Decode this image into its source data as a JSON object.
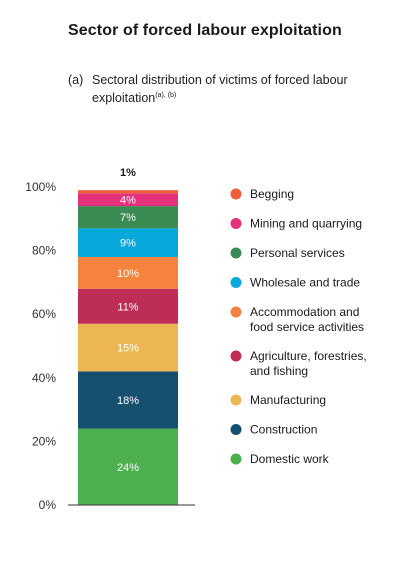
{
  "title": "Sector of forced labour exploitation",
  "subtitle": {
    "number": "(a)",
    "line1": "Sectoral distribution of victims of forced labour",
    "line2": "exploitation",
    "note": "(a), (b)"
  },
  "chart_data": {
    "type": "bar",
    "stacked": true,
    "ylim": [
      0,
      100
    ],
    "yticks": [
      "0%",
      "20%",
      "40%",
      "60%",
      "80%",
      "100%"
    ],
    "series": [
      {
        "name": "Domestic work",
        "value": 24,
        "label": "24%",
        "color": "#4caf50"
      },
      {
        "name": "Construction",
        "value": 18,
        "label": "18%",
        "color": "#16506f"
      },
      {
        "name": "Manufacturing",
        "value": 15,
        "label": "15%",
        "color": "#ecb653"
      },
      {
        "name": "Agriculture, forestries, and fishing",
        "value": 11,
        "label": "11%",
        "color": "#be2d55"
      },
      {
        "name": "Accommodation and food service activities",
        "value": 10,
        "label": "10%",
        "color": "#f5823f"
      },
      {
        "name": "Wholesale and trade",
        "value": 9,
        "label": "9%",
        "color": "#08a7dc"
      },
      {
        "name": "Personal services",
        "value": 7,
        "label": "7%",
        "color": "#3b8b55"
      },
      {
        "name": "Mining and quarrying",
        "value": 4,
        "label": "4%",
        "color": "#e5307b"
      },
      {
        "name": "Begging",
        "value": 1,
        "label": "1%",
        "color": "#ec5e3a"
      }
    ],
    "legend": [
      {
        "lines": [
          "Begging"
        ],
        "color": "#ec5e3a"
      },
      {
        "lines": [
          "Mining and quarrying"
        ],
        "color": "#e5307b"
      },
      {
        "lines": [
          "Personal services"
        ],
        "color": "#3b8b55"
      },
      {
        "lines": [
          "Wholesale and trade"
        ],
        "color": "#08a7dc"
      },
      {
        "lines": [
          "Accommodation and",
          "food service activities"
        ],
        "color": "#f5823f"
      },
      {
        "lines": [
          "Agriculture, forestries,",
          "and fishing"
        ],
        "color": "#be2d55"
      },
      {
        "lines": [
          "Manufacturing"
        ],
        "color": "#ecb653"
      },
      {
        "lines": [
          "Construction"
        ],
        "color": "#16506f"
      },
      {
        "lines": [
          "Domestic work"
        ],
        "color": "#4caf50"
      }
    ],
    "legend_position": "right"
  }
}
